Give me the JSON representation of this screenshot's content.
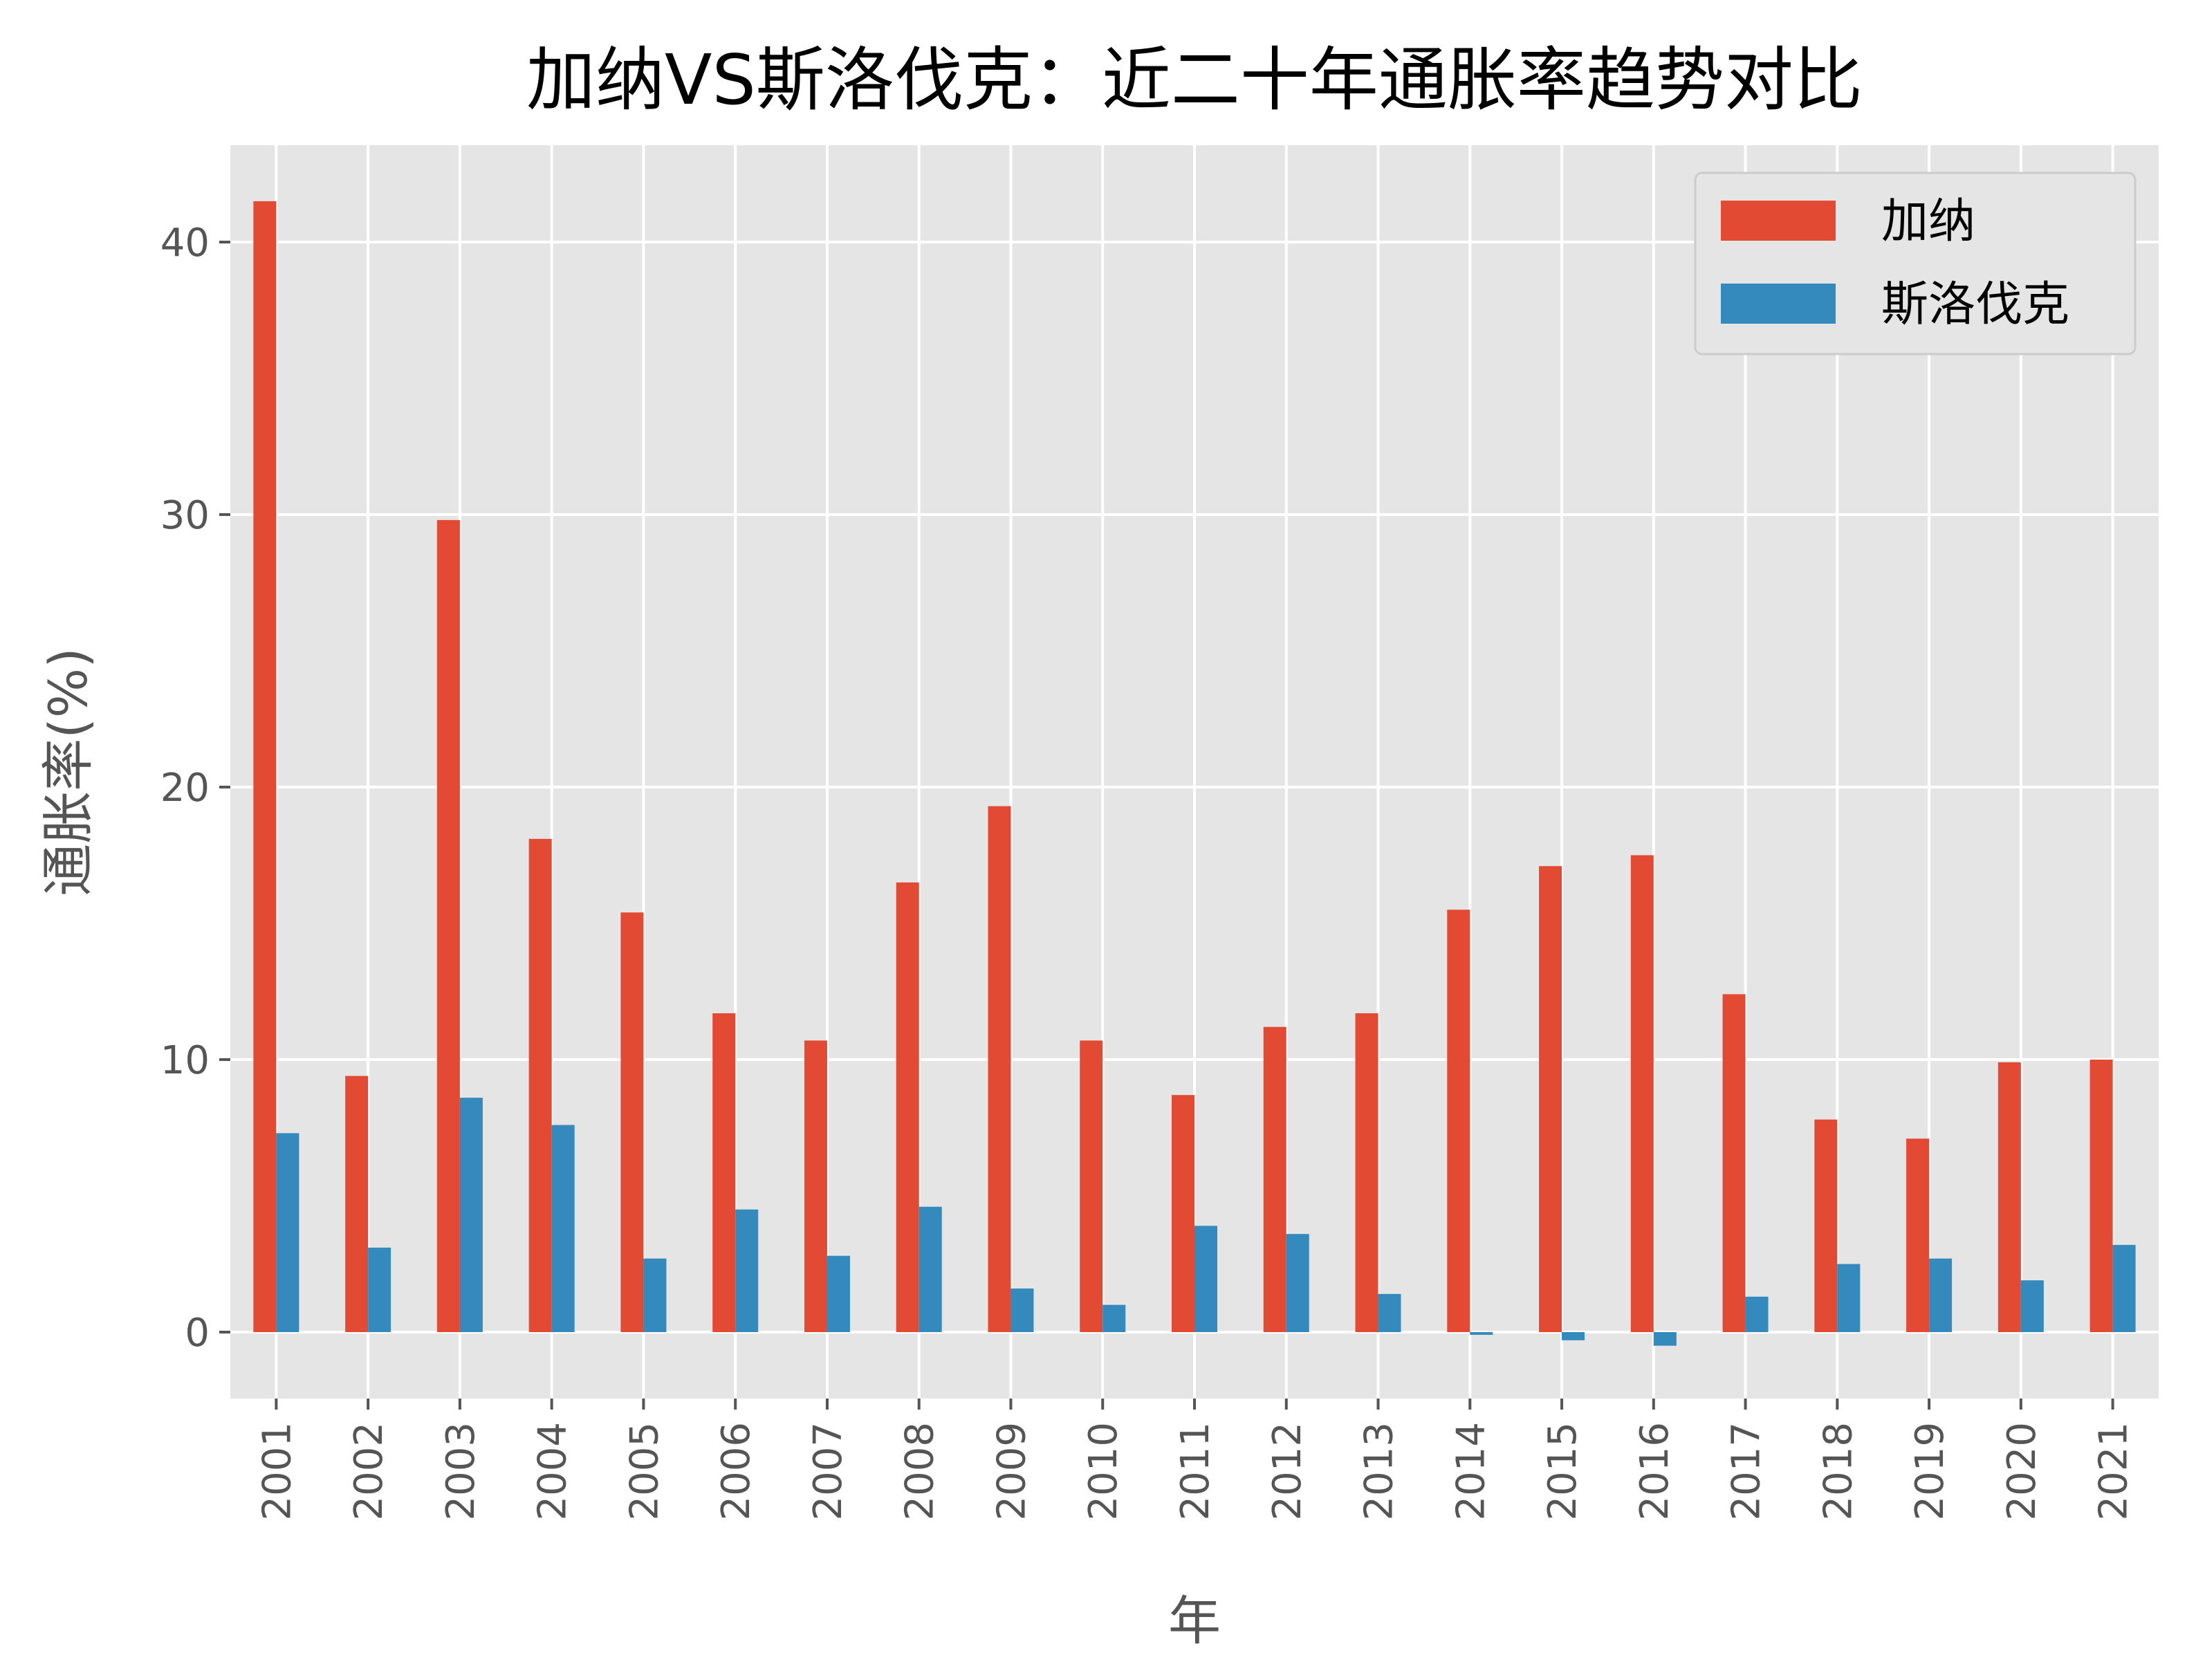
{
  "chart_data": {
    "type": "bar",
    "title": "加纳VS斯洛伐克：近二十年通胀率趋势对比",
    "xlabel": "年",
    "ylabel": "通胀率(%)",
    "categories": [
      "2001",
      "2002",
      "2003",
      "2004",
      "2005",
      "2006",
      "2007",
      "2008",
      "2009",
      "2010",
      "2011",
      "2012",
      "2013",
      "2014",
      "2015",
      "2016",
      "2017",
      "2018",
      "2019",
      "2020",
      "2021"
    ],
    "series": [
      {
        "name": "加纳",
        "color": "#E24A33",
        "values": [
          41.5,
          9.4,
          29.8,
          18.1,
          15.4,
          11.7,
          10.7,
          16.5,
          19.3,
          10.7,
          8.7,
          11.2,
          11.7,
          15.5,
          17.1,
          17.5,
          12.4,
          7.8,
          7.1,
          9.9,
          10.0
        ]
      },
      {
        "name": "斯洛伐克",
        "color": "#348ABD",
        "values": [
          7.3,
          3.1,
          8.6,
          7.6,
          2.7,
          4.5,
          2.8,
          4.6,
          1.6,
          1.0,
          3.9,
          3.6,
          1.4,
          -0.1,
          -0.3,
          -0.5,
          1.3,
          2.5,
          2.7,
          1.9,
          3.2
        ]
      }
    ],
    "yticks": [
      0,
      10,
      20,
      30,
      40
    ],
    "ylim": [
      -2.5,
      43.5
    ],
    "grid": true,
    "legend_position": "top-right",
    "background_color": "#E5E5E5"
  }
}
